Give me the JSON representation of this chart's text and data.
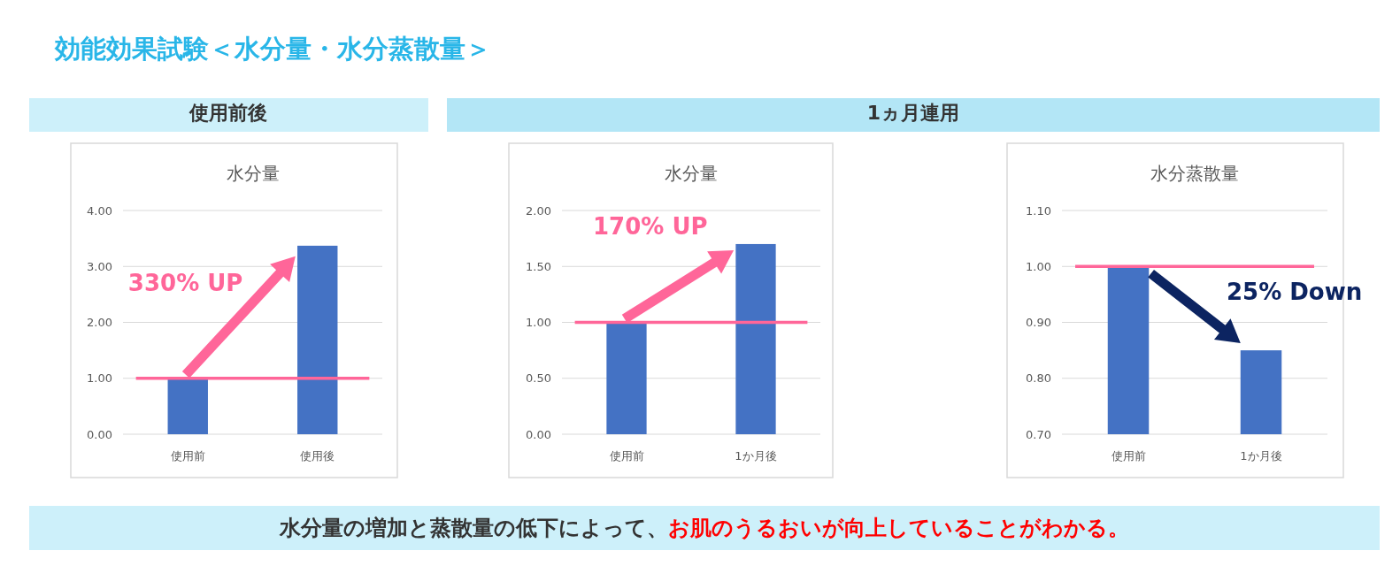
{
  "chart_data": [
    {
      "type": "other",
      "title": "効能効果試験＜水分量・水分蒸散量＞",
      "annotations": [
        "使用前後",
        "1ヵ月連用",
        "水分量の増加と蒸散量の低下によって、",
        "お肌のうるおいが向上していることがわかる。"
      ]
    },
    {
      "type": "bar",
      "title": "水分量",
      "categories": [
        "使用前",
        "使用後"
      ],
      "values": [
        1.0,
        3.37
      ],
      "color": "#4472c4",
      "ylim": [
        0,
        4
      ],
      "yticks": [
        {
          "value": 0,
          "label": "0.00"
        },
        {
          "value": 1,
          "label": "1.00"
        },
        {
          "value": 2,
          "label": "2.00"
        },
        {
          "value": 3,
          "label": "3.00"
        },
        {
          "value": 4,
          "label": "4.00"
        }
      ],
      "grid": "y",
      "ref_lines": [
        {
          "axis": "y",
          "value": 1,
          "color": "#ff6699"
        }
      ],
      "annotations": [
        "330% UP"
      ]
    },
    {
      "type": "bar",
      "title": "水分量",
      "categories": [
        "使用前",
        "1か月後"
      ],
      "values": [
        1.0,
        1.7
      ],
      "color": "#4472c4",
      "ylim": [
        0,
        2
      ],
      "yticks": [
        {
          "value": 0,
          "label": "0.00"
        },
        {
          "value": 0.5,
          "label": "0.50"
        },
        {
          "value": 1,
          "label": "1.00"
        },
        {
          "value": 1.5,
          "label": "1.50"
        },
        {
          "value": 2,
          "label": "2.00"
        }
      ],
      "grid": "y",
      "ref_lines": [
        {
          "axis": "y",
          "value": 1,
          "color": "#ff6699"
        }
      ],
      "annotations": [
        "170% UP"
      ]
    },
    {
      "type": "bar",
      "title": "水分蒸散量",
      "categories": [
        "使用前",
        "1か月後"
      ],
      "values": [
        1.0,
        0.85
      ],
      "color": "#4472c4",
      "ylim": [
        0.7,
        1.1
      ],
      "yticks": [
        {
          "value": 0.7,
          "label": "0.70"
        },
        {
          "value": 0.8,
          "label": "0.80"
        },
        {
          "value": 0.9,
          "label": "0.90"
        },
        {
          "value": 1.0,
          "label": "1.00"
        },
        {
          "value": 1.1,
          "label": "1.10"
        }
      ],
      "grid": "y",
      "ref_lines": [
        {
          "axis": "y",
          "value": 1,
          "color": "#ff6699"
        }
      ],
      "annotations": [
        {
          "text": "25% Down",
          "x": "1か月後",
          "y": 0.85
        }
      ]
    }
  ]
}
